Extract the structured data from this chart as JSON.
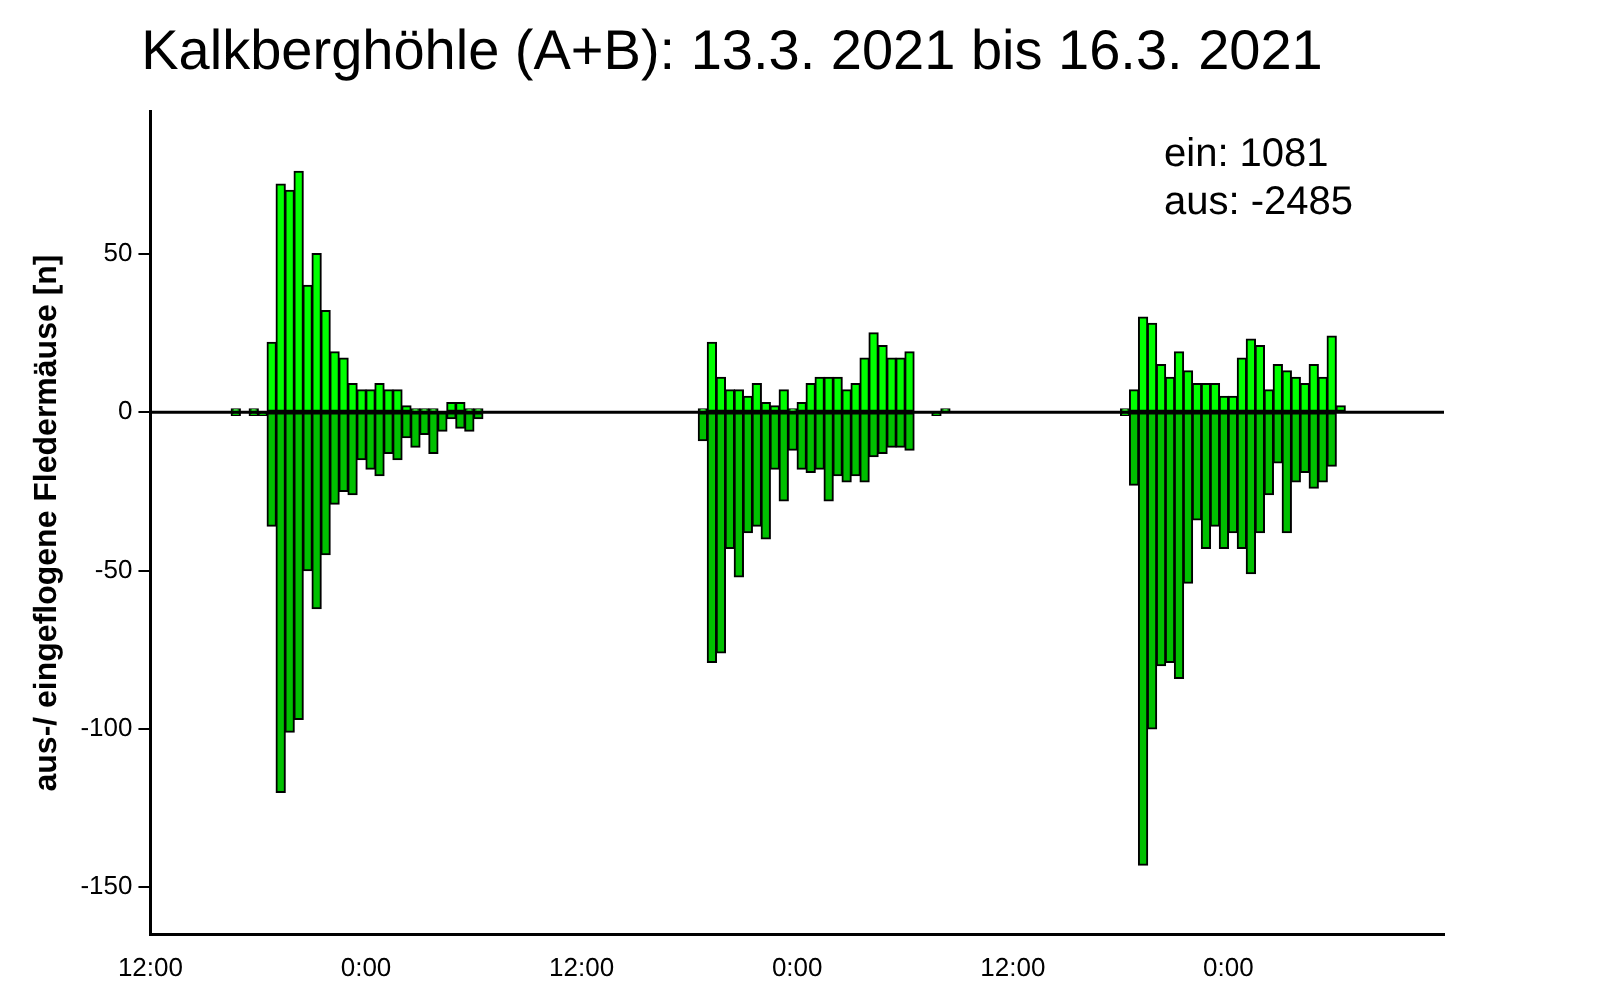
{
  "chart_data": {
    "type": "bar",
    "title": "Kalkberghöhle (A+B): 13.3. 2021 bis 16.3. 2021",
    "ylabel": "aus-/ eingeflogene Fledermäuse [n]",
    "annotations": [
      "ein: 1081",
      "aus: -2485"
    ],
    "series": [
      {
        "color": "#00ff00",
        "x": [
          "2021-03-13T16:45",
          "2021-03-13T17:45",
          "2021-03-13T18:45",
          "2021-03-13T19:15",
          "2021-03-13T19:45",
          "2021-03-13T20:15",
          "2021-03-13T20:45",
          "2021-03-13T21:15",
          "2021-03-13T21:45",
          "2021-03-13T22:15",
          "2021-03-13T22:45",
          "2021-03-13T23:15",
          "2021-03-13T23:45",
          "2021-03-14T00:15",
          "2021-03-14T00:45",
          "2021-03-14T01:15",
          "2021-03-14T01:45",
          "2021-03-14T02:15",
          "2021-03-14T02:45",
          "2021-03-14T03:15",
          "2021-03-14T03:45",
          "2021-03-14T04:15",
          "2021-03-14T04:45",
          "2021-03-14T05:15",
          "2021-03-14T05:45",
          "2021-03-14T06:15",
          "2021-03-14T18:45",
          "2021-03-14T19:15",
          "2021-03-14T19:45",
          "2021-03-14T20:15",
          "2021-03-14T20:45",
          "2021-03-14T21:15",
          "2021-03-14T21:45",
          "2021-03-14T22:15",
          "2021-03-14T22:45",
          "2021-03-14T23:15",
          "2021-03-14T23:45",
          "2021-03-15T00:15",
          "2021-03-15T00:45",
          "2021-03-15T01:15",
          "2021-03-15T01:45",
          "2021-03-15T02:15",
          "2021-03-15T02:45",
          "2021-03-15T03:15",
          "2021-03-15T03:45",
          "2021-03-15T04:15",
          "2021-03-15T04:45",
          "2021-03-15T05:15",
          "2021-03-15T05:45",
          "2021-03-15T06:15",
          "2021-03-15T08:15",
          "2021-03-15T18:15",
          "2021-03-15T18:45",
          "2021-03-15T19:15",
          "2021-03-15T19:45",
          "2021-03-15T20:15",
          "2021-03-15T20:45",
          "2021-03-15T21:15",
          "2021-03-15T21:45",
          "2021-03-15T22:15",
          "2021-03-15T22:45",
          "2021-03-15T23:15",
          "2021-03-15T23:45",
          "2021-03-16T00:15",
          "2021-03-16T00:45",
          "2021-03-16T01:15",
          "2021-03-16T01:45",
          "2021-03-16T02:15",
          "2021-03-16T02:45",
          "2021-03-16T03:15",
          "2021-03-16T03:45",
          "2021-03-16T04:15",
          "2021-03-16T04:45",
          "2021-03-16T05:15",
          "2021-03-16T05:45",
          "2021-03-16T06:15"
        ],
        "values": [
          1,
          1,
          22,
          72,
          70,
          76,
          40,
          50,
          32,
          19,
          17,
          9,
          7,
          7,
          9,
          7,
          7,
          2,
          1,
          1,
          1,
          0,
          3,
          3,
          1,
          1,
          1,
          22,
          11,
          7,
          7,
          5,
          9,
          3,
          2,
          7,
          1,
          3,
          9,
          11,
          11,
          11,
          7,
          9,
          17,
          25,
          21,
          17,
          17,
          19,
          1,
          1,
          7,
          30,
          28,
          15,
          11,
          19,
          13,
          9,
          9,
          9,
          5,
          5,
          17,
          23,
          21,
          7,
          15,
          13,
          11,
          9,
          15,
          11,
          24,
          2
        ]
      },
      {
        "color": "#00c000",
        "x": [
          "2021-03-13T16:45",
          "2021-03-13T17:45",
          "2021-03-13T18:15",
          "2021-03-13T18:45",
          "2021-03-13T19:15",
          "2021-03-13T19:45",
          "2021-03-13T20:15",
          "2021-03-13T20:45",
          "2021-03-13T21:15",
          "2021-03-13T21:45",
          "2021-03-13T22:15",
          "2021-03-13T22:45",
          "2021-03-13T23:15",
          "2021-03-13T23:45",
          "2021-03-14T00:15",
          "2021-03-14T00:45",
          "2021-03-14T01:15",
          "2021-03-14T01:45",
          "2021-03-14T02:15",
          "2021-03-14T02:45",
          "2021-03-14T03:15",
          "2021-03-14T03:45",
          "2021-03-14T04:15",
          "2021-03-14T04:45",
          "2021-03-14T05:15",
          "2021-03-14T05:45",
          "2021-03-14T06:15",
          "2021-03-14T18:45",
          "2021-03-14T19:15",
          "2021-03-14T19:45",
          "2021-03-14T20:15",
          "2021-03-14T20:45",
          "2021-03-14T21:15",
          "2021-03-14T21:45",
          "2021-03-14T22:15",
          "2021-03-14T22:45",
          "2021-03-14T23:15",
          "2021-03-14T23:45",
          "2021-03-15T00:15",
          "2021-03-15T00:45",
          "2021-03-15T01:15",
          "2021-03-15T01:45",
          "2021-03-15T02:15",
          "2021-03-15T02:45",
          "2021-03-15T03:15",
          "2021-03-15T03:45",
          "2021-03-15T04:15",
          "2021-03-15T04:45",
          "2021-03-15T05:15",
          "2021-03-15T05:45",
          "2021-03-15T06:15",
          "2021-03-15T07:45",
          "2021-03-15T18:15",
          "2021-03-15T18:45",
          "2021-03-15T19:15",
          "2021-03-15T19:45",
          "2021-03-15T20:15",
          "2021-03-15T20:45",
          "2021-03-15T21:15",
          "2021-03-15T21:45",
          "2021-03-15T22:15",
          "2021-03-15T22:45",
          "2021-03-15T23:15",
          "2021-03-15T23:45",
          "2021-03-16T00:15",
          "2021-03-16T00:45",
          "2021-03-16T01:15",
          "2021-03-16T01:45",
          "2021-03-16T02:15",
          "2021-03-16T02:45",
          "2021-03-16T03:15",
          "2021-03-16T03:45",
          "2021-03-16T04:15",
          "2021-03-16T04:45",
          "2021-03-16T05:15",
          "2021-03-16T05:45"
        ],
        "values": [
          -1,
          -1,
          -1,
          -36,
          -120,
          -101,
          -97,
          -50,
          -62,
          -45,
          -29,
          -25,
          -26,
          -15,
          -18,
          -20,
          -13,
          -15,
          -8,
          -11,
          -7,
          -13,
          -6,
          -2,
          -5,
          -6,
          -2,
          -9,
          -79,
          -76,
          -43,
          -52,
          -38,
          -36,
          -40,
          -18,
          -28,
          -12,
          -18,
          -19,
          -18,
          -28,
          -20,
          -22,
          -20,
          -22,
          -14,
          -13,
          -11,
          -11,
          -12,
          -1,
          -1,
          -23,
          -143,
          -100,
          -80,
          -79,
          -84,
          -54,
          -34,
          -43,
          -36,
          -43,
          -38,
          -43,
          -51,
          -38,
          -26,
          -16,
          -38,
          -22,
          -19,
          -24,
          -22,
          -17
        ]
      }
    ],
    "xlim": [
      "2021-03-13T12:00",
      "2021-03-16T12:00"
    ],
    "xticks": [
      {
        "value": "2021-03-13T12:00",
        "label": "12:00"
      },
      {
        "value": "2021-03-14T00:00",
        "label": "0:00"
      },
      {
        "value": "2021-03-14T12:00",
        "label": "12:00"
      },
      {
        "value": "2021-03-15T00:00",
        "label": "0:00"
      },
      {
        "value": "2021-03-15T12:00",
        "label": "12:00"
      },
      {
        "value": "2021-03-16T00:00",
        "label": "0:00"
      }
    ],
    "ylim": [
      -165,
      95
    ],
    "yticks": [
      -150,
      -100,
      -50,
      0,
      50
    ],
    "ref_lines": [
      {
        "axis": "y",
        "value": 0,
        "color": "#000000"
      }
    ],
    "grid": false,
    "legend": false
  }
}
